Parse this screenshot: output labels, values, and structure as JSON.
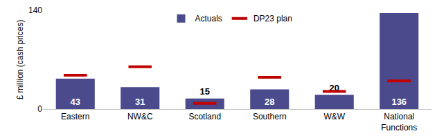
{
  "chart_data": {
    "type": "bar",
    "y_label": "£ million (cash prices)",
    "categories": [
      "Eastern",
      "NW&C",
      "Scotland",
      "Southern",
      "W&W",
      "National Functions"
    ],
    "series": [
      {
        "name": "Actuals",
        "type": "bar",
        "color": "#4b4a8c",
        "values": [
          43,
          31,
          15,
          28,
          20,
          136
        ],
        "data_labels": true
      },
      {
        "name": "DP23 plan",
        "type": "scatter",
        "color": "#c00000",
        "marker": "dash",
        "values": [
          48,
          60,
          8,
          45,
          25,
          40
        ]
      }
    ],
    "ylim": [
      0,
      140
    ],
    "yticks": [
      0,
      140
    ],
    "grid": false,
    "legend": "top"
  }
}
